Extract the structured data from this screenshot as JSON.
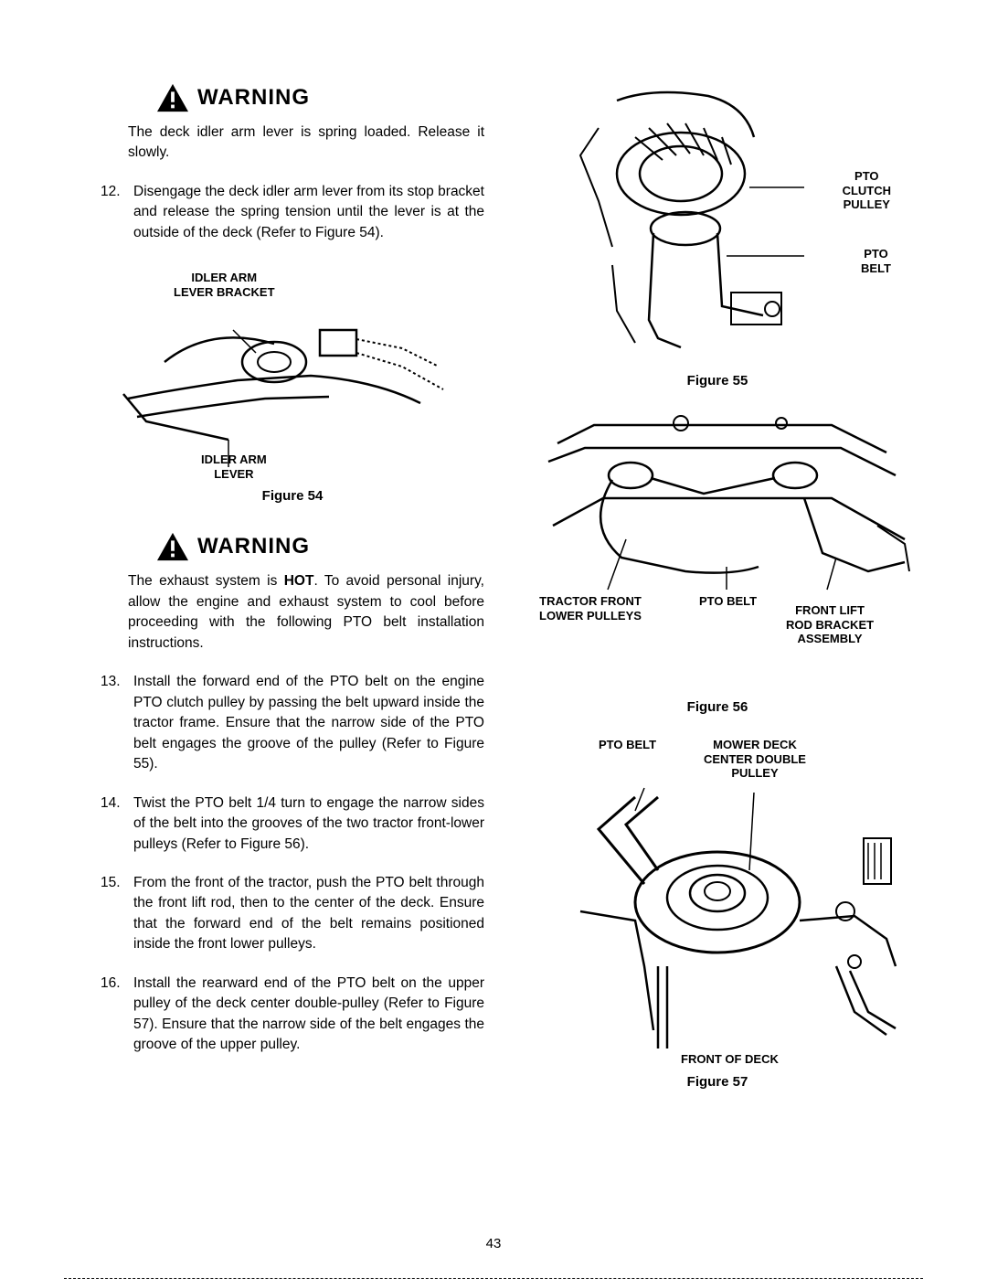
{
  "warning1": {
    "title": "WARNING",
    "text": "The deck idler arm lever is spring loaded. Release it slowly."
  },
  "step12": {
    "num": "12.",
    "text": "Disengage the deck idler arm lever from its stop bracket and release the spring tension until the lever is at the outside of the deck (Refer to Figure 54)."
  },
  "fig54": {
    "label_top": "IDLER ARM\nLEVER BRACKET",
    "label_bottom": "IDLER ARM\nLEVER",
    "caption": "Figure 54"
  },
  "warning2": {
    "title": "WARNING",
    "text": "The exhaust system is HOT. To avoid personal injury, allow the engine and exhaust system to cool before proceeding with the following PTO belt installation instructions."
  },
  "step13": {
    "num": "13.",
    "text": "Install the forward end of the PTO belt on the engine PTO clutch pulley by passing the belt upward inside the tractor frame. Ensure that the narrow side of the PTO belt engages the groove of the pulley (Refer to Figure 55)."
  },
  "step14": {
    "num": "14.",
    "text": "Twist the PTO belt 1/4 turn to engage the narrow sides of the belt into the grooves of the two tractor front-lower pulleys (Refer to Figure 56)."
  },
  "step15": {
    "num": "15.",
    "text": "From the front of the tractor, push the PTO belt through the front lift rod, then to the center of the deck. Ensure that the forward end of the belt remains positioned inside the front lower pulleys."
  },
  "step16": {
    "num": "16.",
    "text": "Install the rearward end of the PTO belt on the upper pulley of the deck center double-pulley (Refer to Figure 57). Ensure that the narrow side of the belt engages the groove of the upper pulley."
  },
  "fig55": {
    "label1": "PTO\nCLUTCH\nPULLEY",
    "label2": "PTO\nBELT",
    "caption": "Figure 55"
  },
  "fig56": {
    "label1": "TRACTOR FRONT\nLOWER PULLEYS",
    "label2": "PTO BELT",
    "label3": "FRONT LIFT\nROD BRACKET\nASSEMBLY",
    "caption": "Figure 56"
  },
  "fig57": {
    "label1": "PTO BELT",
    "label2": "MOWER DECK\nCENTER DOUBLE\nPULLEY",
    "label3": "FRONT OF DECK",
    "caption": "Figure 57"
  },
  "page_number": "43"
}
